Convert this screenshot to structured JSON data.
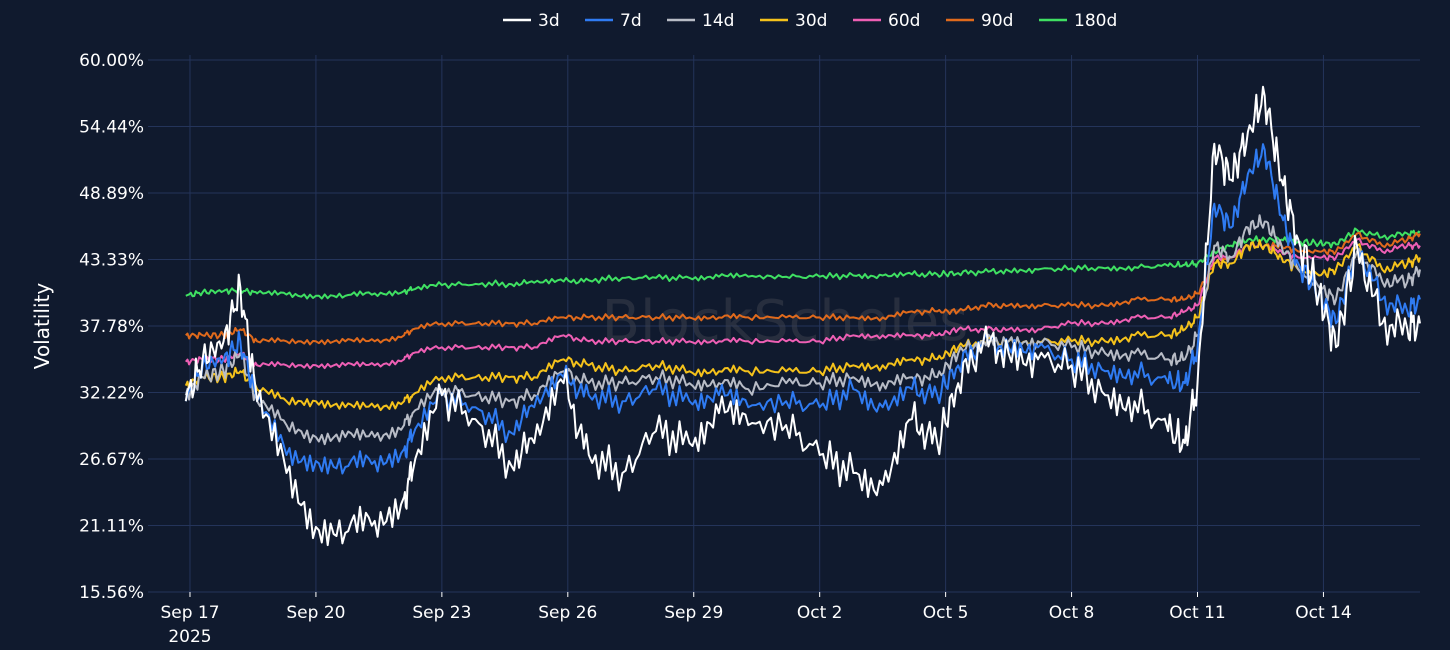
{
  "chart_data": {
    "type": "line",
    "title": "",
    "ylabel": "Volatility",
    "xlabel": "",
    "watermark": "BlockScholes",
    "ylim": [
      15.56,
      60.0
    ],
    "yticks": [
      "60.00%",
      "54.44%",
      "48.89%",
      "43.33%",
      "37.78%",
      "32.22%",
      "26.67%",
      "21.11%",
      "15.56%"
    ],
    "ytick_values": [
      60.0,
      54.44,
      48.89,
      43.33,
      37.78,
      32.22,
      26.67,
      21.11,
      15.56
    ],
    "xlim": [
      16.1,
      32.4
    ],
    "xticks": [
      {
        "label": "Sep 17",
        "sub": "2025",
        "day": 17
      },
      {
        "label": "Sep 20",
        "day": 20
      },
      {
        "label": "Sep 23",
        "day": 23
      },
      {
        "label": "Sep 26",
        "day": 26
      },
      {
        "label": "Sep 29",
        "day": 29
      },
      {
        "label": "Oct 2",
        "day": 32
      },
      {
        "label": "Oct 5",
        "day": 35
      },
      {
        "label": "Oct 8",
        "day": 38
      },
      {
        "label": "Oct 11",
        "day": 41
      },
      {
        "label": "Oct 14",
        "day": 44
      }
    ],
    "x_days": [
      16.9,
      17.3,
      17.8,
      18.2,
      18.6,
      19.3,
      20.0,
      20.7,
      21.4,
      22.1,
      22.3,
      23.0,
      23.8,
      24.6,
      25.2,
      25.9,
      26.5,
      27.3,
      28.1,
      28.9,
      29.6,
      30.3,
      31.2,
      32.0,
      32.8,
      33.5,
      34.2,
      34.8,
      35.3,
      35.9,
      36.5,
      37.2,
      38.0,
      38.8,
      39.5,
      40.3,
      40.7,
      41.0,
      41.4,
      41.8,
      42.2,
      42.6,
      43.0,
      43.4,
      43.9,
      44.3,
      44.8,
      45.4,
      46.0,
      46.3
    ],
    "series": [
      {
        "name": "3d",
        "color": "#ffffff",
        "values": [
          31.5,
          35.0,
          36.5,
          41.0,
          31.5,
          25.5,
          21.0,
          20.5,
          21.5,
          23.5,
          25.5,
          32.0,
          30.0,
          26.5,
          28.0,
          33.0,
          27.0,
          25.5,
          29.0,
          28.0,
          30.5,
          29.5,
          29.5,
          27.0,
          25.5,
          24.5,
          30.0,
          28.0,
          33.0,
          36.5,
          35.5,
          35.0,
          34.5,
          32.0,
          31.5,
          29.0,
          28.0,
          33.0,
          53.0,
          50.0,
          54.0,
          57.0,
          50.0,
          45.0,
          40.5,
          36.0,
          44.5,
          38.0,
          37.5,
          38.0
        ]
      },
      {
        "name": "7d",
        "color": "#2f7bf2",
        "values": [
          31.5,
          34.5,
          35.0,
          36.5,
          31.5,
          27.0,
          26.5,
          26.0,
          26.5,
          27.5,
          28.5,
          32.0,
          31.0,
          29.0,
          31.0,
          33.5,
          32.0,
          31.5,
          32.5,
          31.5,
          32.0,
          31.0,
          31.5,
          31.0,
          32.5,
          31.0,
          32.5,
          32.0,
          34.5,
          36.5,
          36.0,
          36.0,
          35.0,
          34.0,
          34.0,
          33.0,
          33.0,
          36.0,
          48.0,
          46.0,
          50.5,
          52.5,
          47.0,
          43.0,
          40.5,
          38.0,
          44.5,
          40.0,
          39.0,
          40.0
        ]
      },
      {
        "name": "14d",
        "color": "#b8bcc6",
        "values": [
          32.0,
          33.5,
          34.0,
          35.5,
          31.5,
          29.5,
          28.5,
          28.5,
          28.5,
          29.5,
          30.5,
          32.5,
          32.0,
          31.5,
          32.0,
          34.0,
          33.0,
          33.0,
          33.5,
          33.0,
          33.0,
          32.5,
          33.0,
          33.0,
          33.5,
          33.0,
          33.5,
          33.5,
          35.5,
          36.5,
          36.5,
          36.5,
          36.0,
          35.5,
          35.5,
          35.0,
          35.0,
          37.0,
          44.5,
          43.5,
          46.0,
          46.5,
          44.5,
          42.5,
          41.0,
          40.0,
          44.0,
          41.5,
          41.5,
          42.5
        ]
      },
      {
        "name": "30d",
        "color": "#f5c21b",
        "values": [
          32.8,
          33.5,
          33.5,
          34.0,
          32.5,
          31.5,
          31.5,
          31.0,
          31.0,
          31.5,
          32.0,
          33.5,
          33.5,
          33.5,
          33.5,
          35.0,
          34.5,
          34.0,
          34.5,
          34.0,
          34.0,
          34.0,
          34.0,
          34.0,
          34.5,
          34.5,
          35.0,
          35.0,
          36.0,
          36.5,
          36.5,
          36.5,
          36.5,
          36.5,
          37.0,
          37.0,
          37.5,
          38.5,
          43.0,
          43.0,
          44.5,
          44.5,
          43.5,
          42.5,
          42.0,
          42.5,
          44.5,
          42.5,
          43.0,
          43.5
        ]
      },
      {
        "name": "60d",
        "color": "#ee5fb4",
        "values": [
          34.8,
          35.0,
          35.0,
          35.5,
          34.5,
          34.5,
          34.5,
          34.5,
          34.5,
          35.0,
          35.5,
          36.0,
          36.0,
          36.0,
          36.0,
          37.0,
          36.5,
          36.5,
          36.5,
          36.5,
          36.5,
          36.5,
          36.5,
          36.5,
          37.0,
          37.0,
          37.0,
          37.0,
          37.5,
          37.5,
          37.5,
          37.5,
          38.0,
          38.0,
          38.5,
          38.5,
          39.0,
          39.5,
          43.5,
          43.5,
          44.5,
          44.5,
          44.0,
          43.5,
          43.5,
          43.5,
          45.0,
          44.0,
          44.5,
          44.5
        ]
      },
      {
        "name": "90d",
        "color": "#e06a1c",
        "values": [
          37.0,
          37.0,
          37.0,
          37.5,
          36.5,
          36.5,
          36.5,
          36.5,
          36.5,
          37.0,
          37.5,
          38.0,
          38.0,
          38.0,
          38.0,
          38.5,
          38.5,
          38.5,
          38.5,
          38.5,
          38.5,
          38.5,
          38.5,
          38.5,
          38.5,
          38.5,
          39.0,
          39.0,
          39.0,
          39.5,
          39.5,
          39.5,
          39.5,
          39.5,
          40.0,
          40.0,
          40.0,
          40.5,
          43.0,
          43.5,
          44.5,
          44.5,
          44.5,
          44.0,
          44.0,
          44.0,
          45.5,
          44.5,
          45.0,
          45.5
        ]
      },
      {
        "name": "180d",
        "color": "#3fe062",
        "values": [
          40.3,
          40.6,
          40.7,
          40.8,
          40.5,
          40.4,
          40.3,
          40.3,
          40.5,
          40.7,
          40.8,
          41.2,
          41.3,
          41.3,
          41.4,
          41.5,
          41.6,
          41.8,
          41.8,
          41.8,
          41.9,
          41.9,
          41.9,
          41.9,
          42.0,
          42.0,
          42.1,
          42.1,
          42.2,
          42.3,
          42.4,
          42.5,
          42.6,
          42.6,
          42.7,
          42.8,
          42.9,
          43.0,
          44.0,
          44.5,
          45.0,
          45.0,
          45.0,
          44.8,
          44.7,
          44.6,
          45.8,
          45.2,
          45.5,
          45.6
        ]
      }
    ]
  }
}
